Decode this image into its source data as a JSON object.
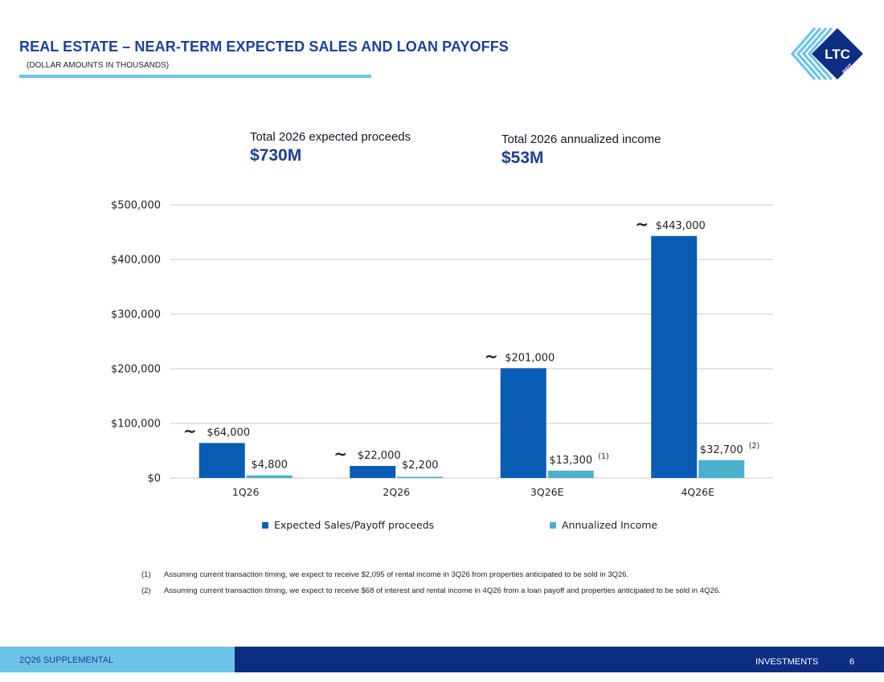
{
  "header": {
    "title": "REAL ESTATE – NEAR-TERM EXPECTED SALES AND LOAN PAYOFFS",
    "subtitle": "(DOLLAR AMOUNTS IN THOUSANDS)"
  },
  "logo": {
    "text": "LTC",
    "subtext": "REIT"
  },
  "kpis": [
    {
      "label": "Total 2026 expected proceeds",
      "value": "$730M"
    },
    {
      "label": "Total 2026 annualized income",
      "value": "$53M"
    }
  ],
  "colors": {
    "primary": "#0b5cb5",
    "secondary": "#4ab0cc",
    "brand_dark": "#0c2d82",
    "brand_light": "#6cc4e8"
  },
  "chart_data": {
    "type": "bar",
    "categories": [
      "1Q26",
      "2Q26",
      "3Q26E",
      "4Q26E"
    ],
    "series": [
      {
        "name": "Expected Sales/Payoff proceeds",
        "values": [
          64000,
          22000,
          201000,
          443000
        ],
        "labels": [
          "$64,000",
          "$22,000",
          "$201,000",
          "$443,000"
        ],
        "approx": true,
        "color": "#0b5cb5"
      },
      {
        "name": "Annualized Income",
        "values": [
          4800,
          2200,
          13300,
          32700
        ],
        "labels": [
          "$4,800",
          "$2,200",
          "$13,300",
          "$32,700"
        ],
        "footnotes": [
          "",
          "",
          "(1)",
          "(2)"
        ],
        "color": "#4ab0cc"
      }
    ],
    "yticks": [
      0,
      100000,
      200000,
      300000,
      400000,
      500000
    ],
    "ytick_labels": [
      "$0",
      "$100,000",
      "$200,000",
      "$300,000",
      "$400,000",
      "$500,000"
    ],
    "ylim": [
      0,
      500000
    ],
    "grid": true,
    "legend": "bottom"
  },
  "footnotes": [
    {
      "num": "(1)",
      "text": "Assuming current transaction timing, we expect to receive $2,095 of rental income in 3Q26 from properties anticipated to be sold in 3Q26."
    },
    {
      "num": "(2)",
      "text": "Assuming current transaction timing, we expect to receive $68 of interest and rental income in 4Q26 from a loan payoff and properties anticipated to be sold in 4Q26."
    }
  ],
  "footer": {
    "left": "2Q26 SUPPLEMENTAL",
    "section": "INVESTMENTS",
    "page": "6"
  }
}
